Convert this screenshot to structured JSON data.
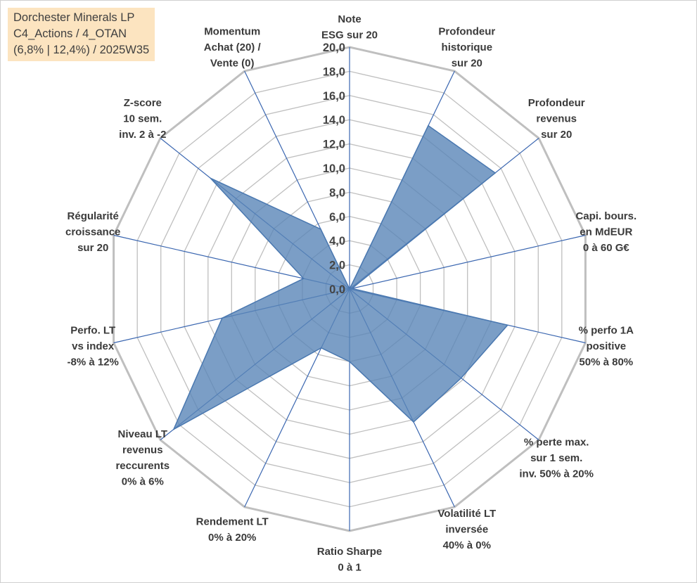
{
  "title": {
    "line1": "Dorchester Minerals LP",
    "line2": "C4_Actions / 4_OTAN",
    "line3": "(6,8% | 12,4%) / 2025W35"
  },
  "colors": {
    "fill": "#5a86b8",
    "stroke": "#4a78b0",
    "grid": "#bfbfbf",
    "spoke": "#3a66b0",
    "title_bg": "#fce4c0"
  },
  "chart_data": {
    "type": "radar",
    "rmin": 0,
    "rmax": 20,
    "ticks": [
      "0,0",
      "2,0",
      "4,0",
      "6,0",
      "8,0",
      "10,0",
      "12,0",
      "14,0",
      "16,0",
      "18,0",
      "20,0"
    ],
    "axes": [
      [
        "Note",
        "ESG sur 20"
      ],
      [
        "Profondeur",
        "historique",
        "sur 20"
      ],
      [
        "Profondeur",
        "revenus",
        "sur 20"
      ],
      [
        "Capi. bours.",
        "en MdEUR",
        "0 à 60 G€"
      ],
      [
        "% perfo 1A",
        "positive",
        "50% à 80%"
      ],
      [
        "% perte max.",
        "sur 1 sem.",
        "inv. 50% à 20%"
      ],
      [
        "Volatilité LT",
        "inversée",
        "40% à 0%"
      ],
      [
        "Ratio Sharpe",
        "0 à 1"
      ],
      [
        "Rendement LT",
        "0% à 20%"
      ],
      [
        "Niveau LT",
        "revenus",
        "reccurents",
        "0% à 6%"
      ],
      [
        "Perfo. LT",
        "vs index",
        "-8% à 12%"
      ],
      [
        "Régularité",
        "croissance",
        "sur 20"
      ],
      [
        "Z-score",
        "10 sem.",
        "inv. 2 à -2"
      ],
      [
        "Momentum",
        "Achat (20) /",
        "Vente (0)"
      ]
    ],
    "values": [
      0,
      15.0,
      15.4,
      0.2,
      13.4,
      11.8,
      12.2,
      6.0,
      5.4,
      18.6,
      10.8,
      3.9,
      14.7,
      5.5
    ],
    "legend": false,
    "grid": true
  }
}
